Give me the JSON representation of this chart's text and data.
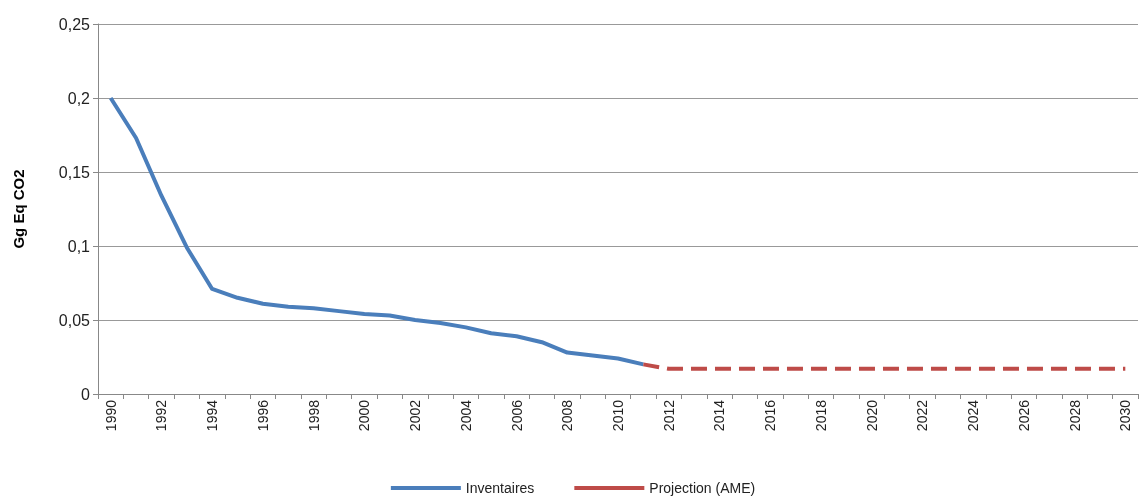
{
  "chart_data": {
    "type": "line",
    "ylabel": "Gg Eq CO2",
    "categories": [
      "1990",
      null,
      "1992",
      null,
      "1994",
      null,
      "1996",
      null,
      "1998",
      null,
      "2000",
      null,
      "2002",
      null,
      "2004",
      null,
      "2006",
      null,
      "2008",
      null,
      "2010",
      null,
      "2012",
      null,
      "2014",
      null,
      "2016",
      null,
      "2018",
      null,
      "2020",
      null,
      "2022",
      null,
      "2024",
      null,
      "2026",
      null,
      "2028",
      null,
      "2030"
    ],
    "series": [
      {
        "name": "Inventaires",
        "color": "#4a7ebb",
        "line_style": "solid",
        "values": [
          0.2,
          0.173,
          0.134,
          0.099,
          0.071,
          0.065,
          0.061,
          0.059,
          0.058,
          0.056,
          0.054,
          0.053,
          0.05,
          0.048,
          0.045,
          0.041,
          0.039,
          0.035,
          0.028,
          0.026,
          0.024,
          0.02,
          null,
          null,
          null,
          null,
          null,
          null,
          null,
          null,
          null,
          null,
          null,
          null,
          null,
          null,
          null,
          null,
          null,
          null,
          null
        ]
      },
      {
        "name": "Projection (AME)",
        "color": "#be4b48",
        "line_style": "dashed",
        "values": [
          null,
          null,
          null,
          null,
          null,
          null,
          null,
          null,
          null,
          null,
          null,
          null,
          null,
          null,
          null,
          null,
          null,
          null,
          null,
          null,
          null,
          0.02,
          0.017,
          0.017,
          0.017,
          0.017,
          0.017,
          0.017,
          0.017,
          0.017,
          0.017,
          0.017,
          0.017,
          0.017,
          0.017,
          0.017,
          0.017,
          0.017,
          0.017,
          0.017,
          0.017
        ]
      }
    ],
    "ylim": [
      0,
      0.25
    ],
    "yticks": [
      0,
      {
        "value": 0.05,
        "label": "0,05"
      },
      {
        "value": 0.1,
        "label": "0,1"
      },
      {
        "value": 0.15,
        "label": "0,15"
      },
      {
        "value": 0.2,
        "label": "0,2"
      },
      {
        "value": 0.25,
        "label": "0,25"
      }
    ],
    "grid": "y",
    "legend": "bottom",
    "marker": "none"
  }
}
